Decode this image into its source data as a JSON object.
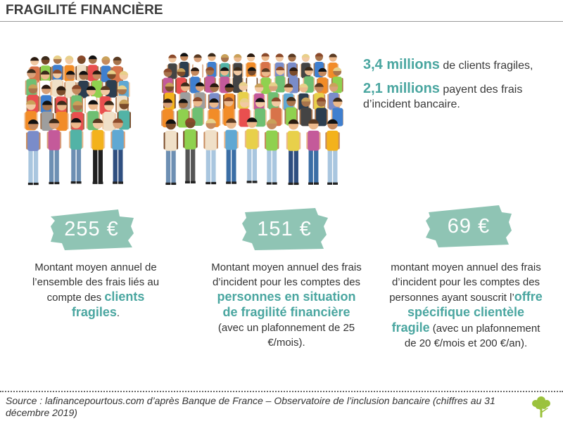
{
  "header": {
    "title": "FRAGILITÉ FINANCIÈRE"
  },
  "stats": {
    "clients": {
      "number": "3,4 millions",
      "text": " de clients fragiles,"
    },
    "incident": {
      "number": "2,1 millions",
      "text": " payent des frais d’incident bancaire."
    }
  },
  "cards": [
    {
      "value": "255 €",
      "text_before": "Montant moyen annuel de l’ensemble des frais liés au compte des ",
      "highlight": "clients fragiles",
      "text_after": "."
    },
    {
      "value": "151 €",
      "text_before": "Montant moyen annuel des frais d’incident pour les comptes des ",
      "highlight": "personnes en situation de fragilité financière",
      "text_after": " (avec un plafonnement de 25 €/mois)."
    },
    {
      "value": "69 €",
      "text_before": "montant moyen annuel des frais d’incident pour les comptes des personnes ayant souscrit l’",
      "highlight": "offre spécifique clientèle fragile",
      "text_after": " (avec un plafonnement de 20 €/mois et 200 €/an)."
    }
  ],
  "footer": {
    "source": "Source : lafinancepourtous.com d’après Banque de France – Observatoire de l’inclusion bancaire (chiffres au 31 décembre 2019)"
  },
  "colors": {
    "accent": "#4aa6a0",
    "tag": "#8fc4b4",
    "logo": "#9bc23c"
  },
  "icons": {
    "crowd": "crowd-illustration-icon",
    "logo": "tree-logo-icon"
  }
}
